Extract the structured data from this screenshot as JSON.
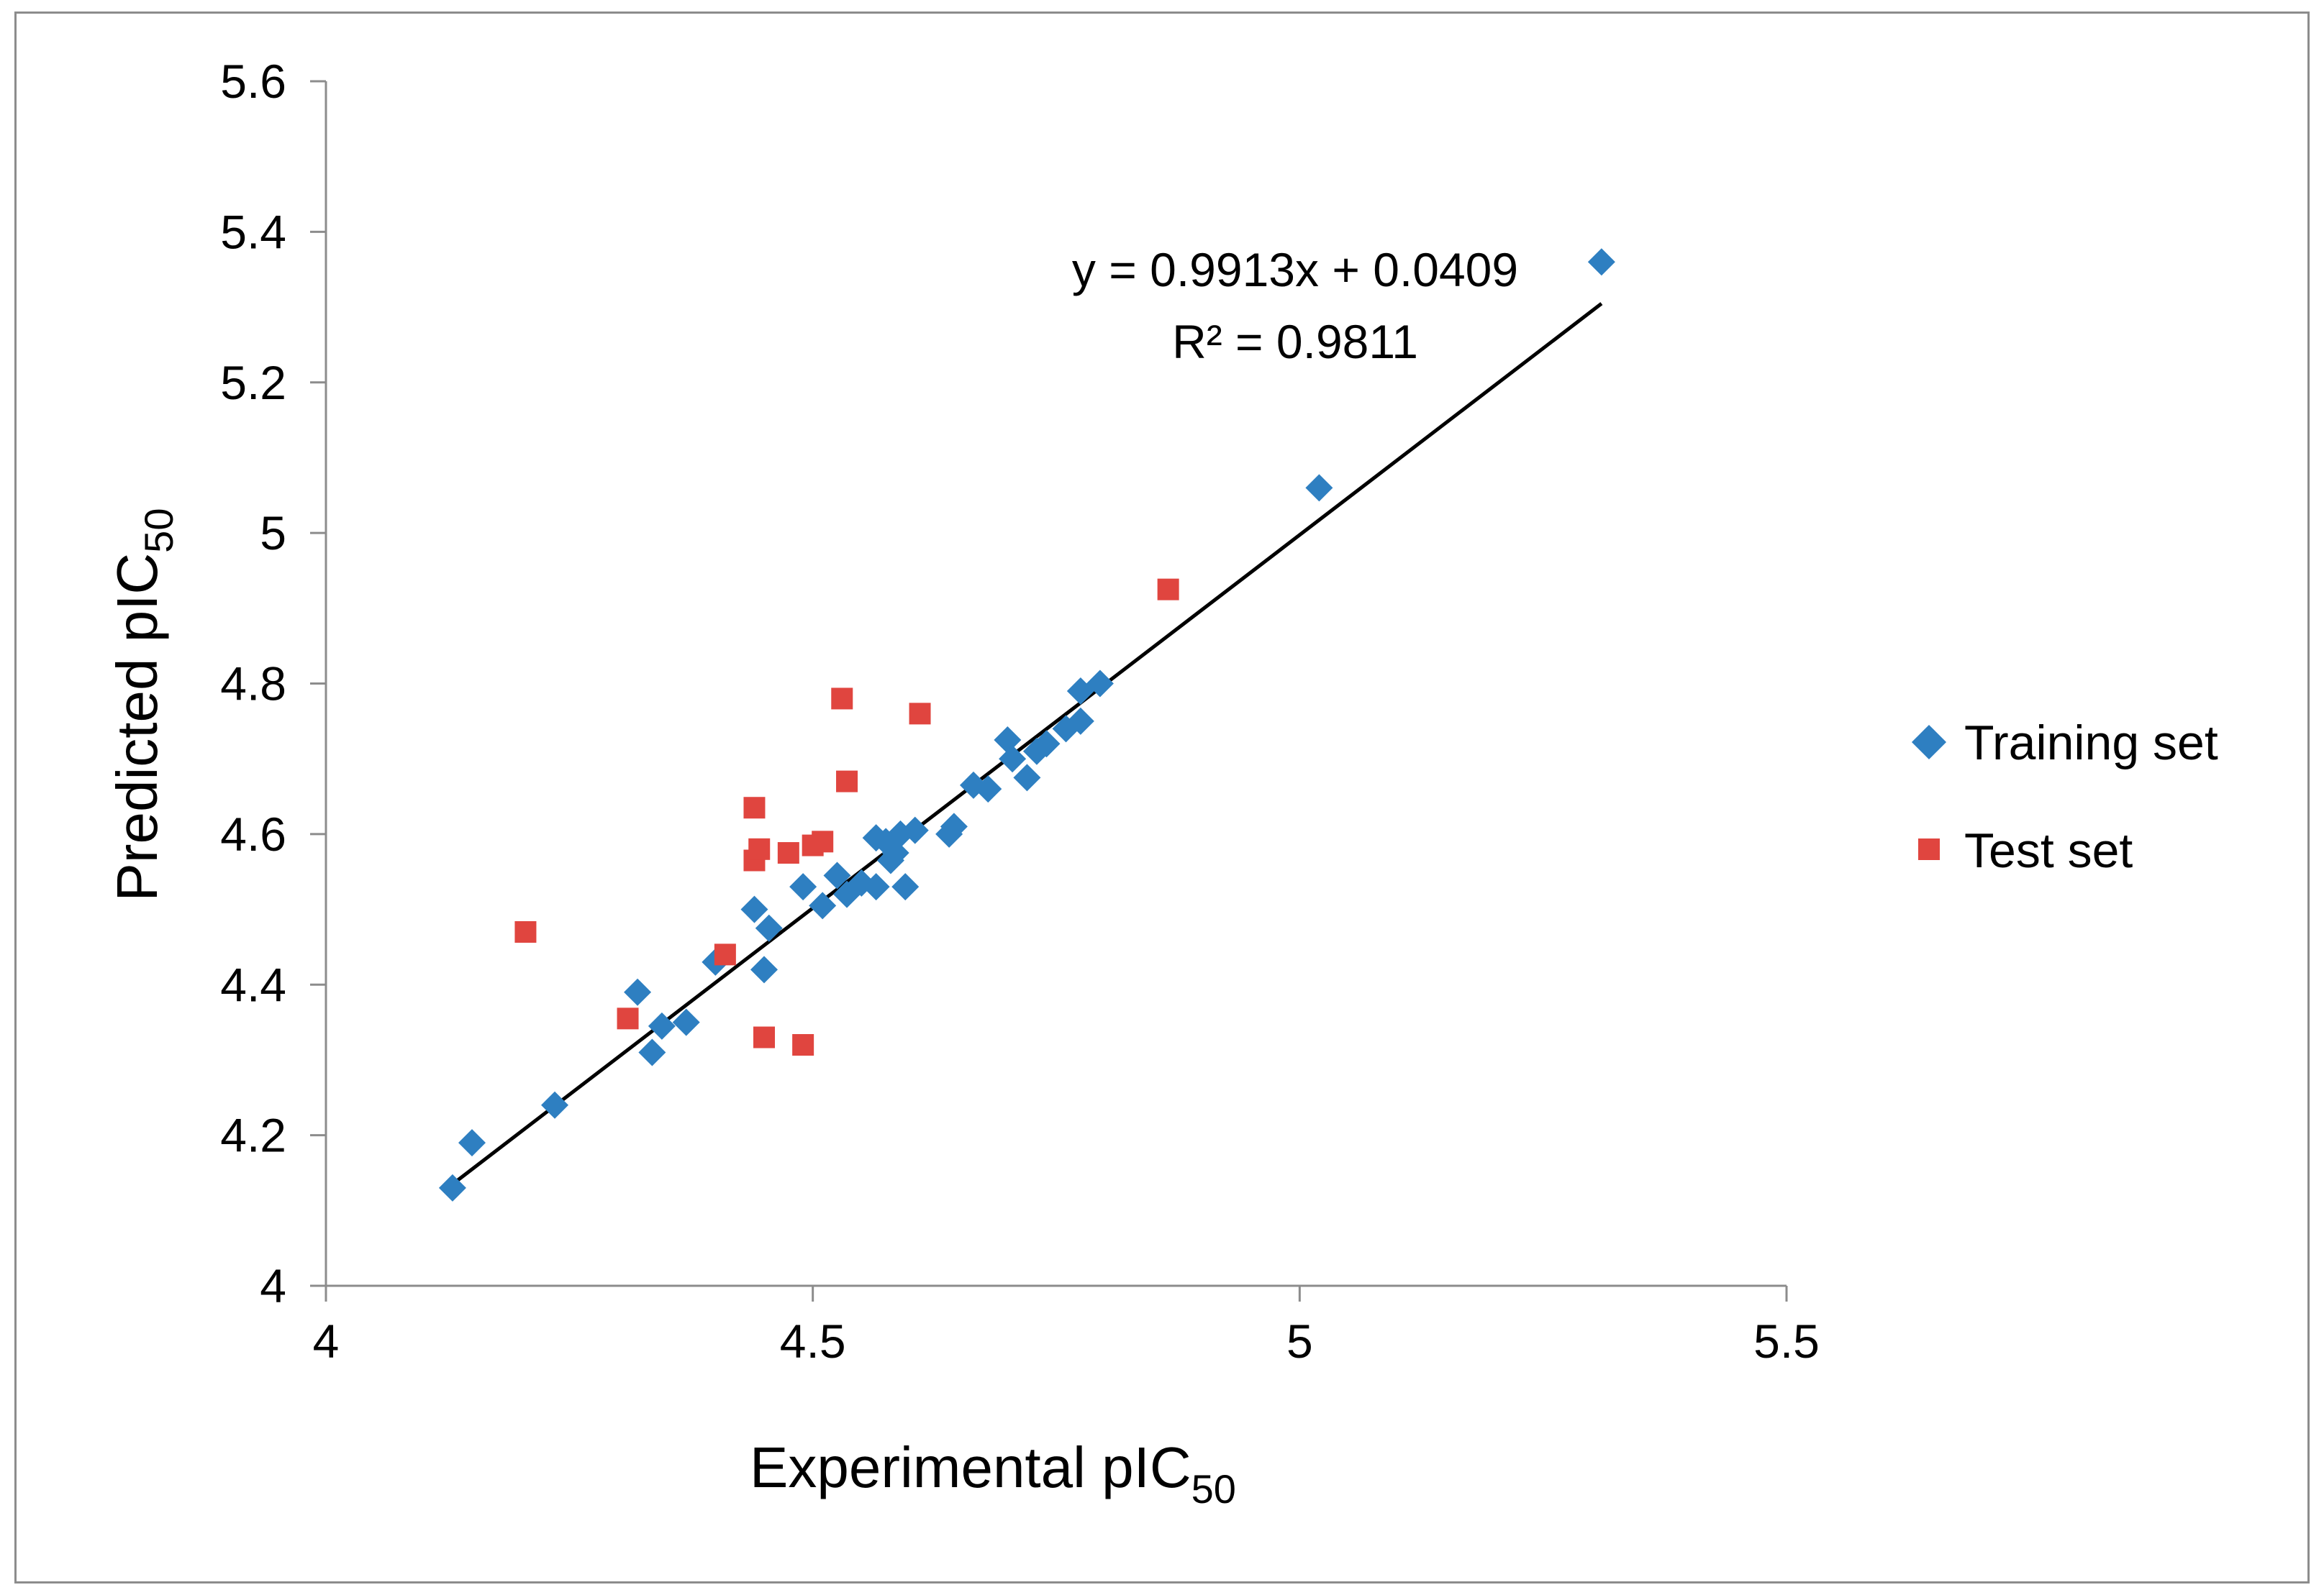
{
  "chart_data": {
    "type": "scatter",
    "xlabel": "Experimental pIC",
    "xlabel_sub": "50",
    "ylabel": "Predicted pIC",
    "ylabel_sub": "50",
    "xlim": [
      4,
      5.5
    ],
    "ylim": [
      4,
      5.6
    ],
    "x_ticks": [
      4,
      4.5,
      5,
      5.5
    ],
    "x_tick_labels": [
      "4",
      "4.5",
      "5",
      "5.5"
    ],
    "y_ticks": [
      4,
      4.2,
      4.4,
      4.6,
      4.8,
      5,
      5.2,
      5.4,
      5.6
    ],
    "y_tick_labels": [
      "4",
      "4.2",
      "4.4",
      "4.6",
      "4.8",
      "5",
      "5.2",
      "5.4",
      "5.6"
    ],
    "grid": false,
    "legend_position": "right",
    "series": [
      {
        "name": "Training set",
        "marker": "diamond",
        "color": "#2e7fc1",
        "points": [
          [
            4.13,
            4.13
          ],
          [
            4.15,
            4.19
          ],
          [
            4.235,
            4.24
          ],
          [
            4.32,
            4.39
          ],
          [
            4.335,
            4.31
          ],
          [
            4.345,
            4.345
          ],
          [
            4.37,
            4.35
          ],
          [
            4.4,
            4.43
          ],
          [
            4.44,
            4.5
          ],
          [
            4.45,
            4.42
          ],
          [
            4.455,
            4.475
          ],
          [
            4.49,
            4.53
          ],
          [
            4.51,
            4.505
          ],
          [
            4.525,
            4.545
          ],
          [
            4.535,
            4.52
          ],
          [
            4.55,
            4.535
          ],
          [
            4.565,
            4.595
          ],
          [
            4.565,
            4.53
          ],
          [
            4.575,
            4.59
          ],
          [
            4.58,
            4.565
          ],
          [
            4.585,
            4.575
          ],
          [
            4.59,
            4.6
          ],
          [
            4.595,
            4.53
          ],
          [
            4.605,
            4.605
          ],
          [
            4.64,
            4.6
          ],
          [
            4.645,
            4.61
          ],
          [
            4.665,
            4.665
          ],
          [
            4.68,
            4.66
          ],
          [
            4.7,
            4.725
          ],
          [
            4.705,
            4.7
          ],
          [
            4.72,
            4.675
          ],
          [
            4.73,
            4.71
          ],
          [
            4.74,
            4.72
          ],
          [
            4.76,
            4.74
          ],
          [
            4.775,
            4.75
          ],
          [
            4.775,
            4.79
          ],
          [
            4.795,
            4.8
          ],
          [
            5.02,
            5.06
          ],
          [
            5.31,
            5.36
          ]
        ]
      },
      {
        "name": "Test set",
        "marker": "square",
        "color": "#e0453f",
        "points": [
          [
            4.205,
            4.47
          ],
          [
            4.31,
            4.355
          ],
          [
            4.41,
            4.44
          ],
          [
            4.44,
            4.635
          ],
          [
            4.44,
            4.565
          ],
          [
            4.445,
            4.58
          ],
          [
            4.45,
            4.33
          ],
          [
            4.475,
            4.575
          ],
          [
            4.49,
            4.32
          ],
          [
            4.5,
            4.585
          ],
          [
            4.51,
            4.59
          ],
          [
            4.53,
            4.78
          ],
          [
            4.535,
            4.67
          ],
          [
            4.61,
            4.76
          ],
          [
            4.865,
            4.925
          ]
        ]
      }
    ],
    "trendline": {
      "slope": 0.9913,
      "intercept": 0.0409,
      "x_range": [
        4.13,
        5.31
      ],
      "color": "#000000",
      "equation": "y = 0.9913x + 0.0409",
      "r_squared": "R² = 0.9811"
    }
  }
}
